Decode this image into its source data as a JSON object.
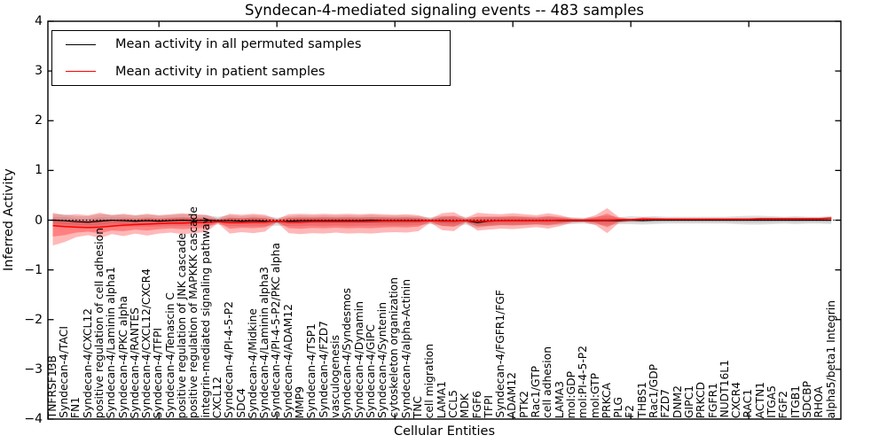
{
  "title": "Syndecan-4-mediated signaling events -- 483 samples",
  "legend": {
    "entries": [
      {
        "label": "Mean activity in all permuted samples",
        "color": "#000000"
      },
      {
        "label": "Mean activity in patient samples",
        "color": "#ff0000"
      }
    ]
  },
  "chart_data": {
    "type": "line",
    "title": "Syndecan-4-mediated signaling events -- 483 samples",
    "xlabel": "Cellular Entities",
    "ylabel": "Inferred Activity",
    "ylim": [
      -4,
      4
    ],
    "grid": false,
    "legend_position": "upper left",
    "zero_line": {
      "y": 0,
      "style": "dotted",
      "color": "#000000"
    },
    "y_ticks": [
      4,
      3,
      2,
      1,
      0,
      -1,
      -2,
      -3,
      -4
    ],
    "y_tick_labels": [
      "4",
      "3",
      "2",
      "1",
      "0",
      "−1",
      "−2",
      "−3",
      "−4"
    ],
    "x_major_tick_positions": [
      10,
      20,
      30,
      40,
      50,
      60
    ],
    "band_colors": {
      "permuted": "rgba(0,0,0,0.13)",
      "patient": "rgba(255,0,0,0.28)"
    },
    "categories": [
      "TNFRSF13B",
      "Syndecan-4/TACI",
      "FN1",
      "Syndecan-4/CXCL12",
      "positive regulation of cell adhesion",
      "Syndecan-4/Laminin alpha1",
      "Syndecan-4/PKC alpha",
      "Syndecan-4/RANTES",
      "Syndecan-4/CXCL12/CXCR4",
      "Syndecan-4/TFPI",
      "Syndecan-4/Tenascin C",
      "positive regulation of JNK cascade",
      "positive regulation of MAPKKK cascade",
      "integrin-mediated signaling pathway",
      "CXCL12",
      "Syndecan-4/PI-4-5-P2",
      "SDC4",
      "Syndecan-4/Midkine",
      "Syndecan-4/Laminin alpha3",
      "Syndecan-4/PI-4-5-P2/PKC alpha",
      "Syndecan-4/ADAM12",
      "MMP9",
      "Syndecan-4/TSP1",
      "Syndecan-4/FZD7",
      "vasculogenesis",
      "Syndecan-4/Syndesmos",
      "Syndecan-4/Dynamin",
      "Syndecan-4/GIPC",
      "Syndecan-4/Syntenin",
      "cytoskeleton organization",
      "Syndecan-4/alpha-Actinin",
      "TNC",
      "cell migration",
      "LAMA1",
      "CCL5",
      "MDK",
      "FGF6",
      "TFPI",
      "Syndecan-4/FGFR1/FGF",
      "ADAM12",
      "PTK2",
      "Rac1/GTP",
      "cell adhesion",
      "LAMA3",
      "mol:GDP",
      "mol:PI-4-5-P2",
      "mol:GTP",
      "PRKCA",
      "PLG",
      "F2",
      "THBS1",
      "Rac1/GDP",
      "FZD7",
      "DNM2",
      "GIPC1",
      "PRKCD",
      "FGFR1",
      "NUDT16L1",
      "CXCR4",
      "RAC1",
      "ACTN1",
      "ITGA5",
      "FGF2",
      "ITGB1",
      "SDCBP",
      "RHOA",
      "alpha5/beta1 Integrin"
    ],
    "series": [
      {
        "name": "Mean activity in all permuted samples",
        "color": "#000000",
        "values": [
          0.0,
          -0.01,
          -0.03,
          -0.04,
          -0.02,
          0.0,
          -0.01,
          -0.02,
          -0.01,
          -0.02,
          -0.01,
          0.0,
          -0.01,
          0.0,
          -0.01,
          -0.01,
          -0.02,
          -0.01,
          -0.02,
          -0.03,
          -0.02,
          -0.01,
          -0.01,
          -0.01,
          -0.01,
          -0.01,
          -0.01,
          0.0,
          -0.01,
          -0.01,
          -0.01,
          -0.01,
          -0.01,
          -0.01,
          -0.02,
          -0.01,
          -0.05,
          -0.02,
          -0.01,
          -0.01,
          -0.01,
          -0.01,
          -0.01,
          -0.01,
          -0.01,
          -0.01,
          -0.01,
          -0.01,
          -0.01,
          0.0,
          -0.01,
          0.0,
          0.0,
          0.0,
          0.0,
          0.0,
          0.0,
          0.0,
          0.0,
          0.0,
          0.0,
          0.0,
          0.0,
          0.0,
          0.0,
          0.0,
          0.0
        ],
        "band_halfwidth": [
          0.12,
          0.13,
          0.11,
          0.12,
          0.14,
          0.11,
          0.12,
          0.11,
          0.12,
          0.11,
          0.11,
          0.12,
          0.11,
          0.1,
          0.08,
          0.11,
          0.1,
          0.11,
          0.1,
          0.08,
          0.1,
          0.11,
          0.1,
          0.11,
          0.1,
          0.11,
          0.1,
          0.11,
          0.1,
          0.1,
          0.1,
          0.09,
          0.07,
          0.1,
          0.11,
          0.08,
          0.11,
          0.1,
          0.09,
          0.1,
          0.09,
          0.08,
          0.1,
          0.08,
          0.07,
          0.06,
          0.08,
          0.1,
          0.07,
          0.08,
          0.08,
          0.08,
          0.07,
          0.07,
          0.07,
          0.07,
          0.07,
          0.07,
          0.08,
          0.09,
          0.09,
          0.08,
          0.07,
          0.08,
          0.07,
          0.07,
          0.08
        ]
      },
      {
        "name": "Mean activity in patient samples",
        "color": "#ff0000",
        "values": [
          -0.11,
          -0.13,
          -0.14,
          -0.15,
          -0.14,
          -0.12,
          -0.1,
          -0.09,
          -0.08,
          -0.07,
          -0.06,
          -0.06,
          -0.05,
          -0.05,
          -0.03,
          -0.05,
          -0.05,
          -0.04,
          -0.04,
          -0.02,
          -0.04,
          -0.04,
          -0.03,
          -0.03,
          -0.03,
          -0.03,
          -0.03,
          -0.03,
          -0.02,
          -0.02,
          -0.02,
          -0.02,
          -0.01,
          -0.02,
          -0.02,
          -0.01,
          -0.02,
          -0.02,
          -0.01,
          -0.01,
          -0.01,
          -0.01,
          -0.01,
          0.0,
          0.0,
          0.0,
          0.0,
          0.0,
          0.01,
          0.01,
          0.02,
          0.02,
          0.02,
          0.02,
          0.02,
          0.02,
          0.02,
          0.02,
          0.02,
          0.02,
          0.03,
          0.03,
          0.03,
          0.03,
          0.03,
          0.03,
          0.04
        ],
        "band_upper": [
          0.15,
          0.1,
          0.12,
          0.1,
          0.15,
          0.1,
          0.13,
          0.1,
          0.13,
          0.1,
          0.12,
          0.14,
          0.12,
          0.11,
          0.03,
          0.13,
          0.11,
          0.13,
          0.11,
          0.02,
          0.12,
          0.13,
          0.12,
          0.13,
          0.12,
          0.13,
          0.12,
          0.13,
          0.12,
          0.11,
          0.12,
          0.1,
          0.03,
          0.14,
          0.16,
          0.04,
          0.15,
          0.13,
          0.12,
          0.14,
          0.12,
          0.1,
          0.14,
          0.1,
          0.04,
          0.03,
          0.1,
          0.24,
          0.06,
          0.03,
          0.06,
          0.05,
          0.04,
          0.04,
          0.04,
          0.04,
          0.04,
          0.04,
          0.04,
          0.04,
          0.05,
          0.05,
          0.05,
          0.05,
          0.05,
          0.05,
          0.07
        ],
        "band_lower": [
          -0.51,
          -0.44,
          -0.34,
          -0.3,
          -0.36,
          -0.28,
          -0.32,
          -0.27,
          -0.31,
          -0.27,
          -0.25,
          -0.28,
          -0.26,
          -0.24,
          -0.06,
          -0.27,
          -0.24,
          -0.26,
          -0.23,
          -0.04,
          -0.26,
          -0.28,
          -0.26,
          -0.27,
          -0.25,
          -0.27,
          -0.26,
          -0.27,
          -0.25,
          -0.24,
          -0.25,
          -0.22,
          -0.05,
          -0.2,
          -0.22,
          -0.05,
          -0.21,
          -0.19,
          -0.17,
          -0.18,
          -0.16,
          -0.14,
          -0.17,
          -0.12,
          -0.05,
          -0.04,
          -0.1,
          -0.26,
          -0.05,
          -0.02,
          -0.02,
          -0.01,
          -0.01,
          0.0,
          0.0,
          0.0,
          0.0,
          0.01,
          0.0,
          0.01,
          0.01,
          0.01,
          0.01,
          0.01,
          0.01,
          0.01,
          0.01
        ]
      }
    ]
  }
}
